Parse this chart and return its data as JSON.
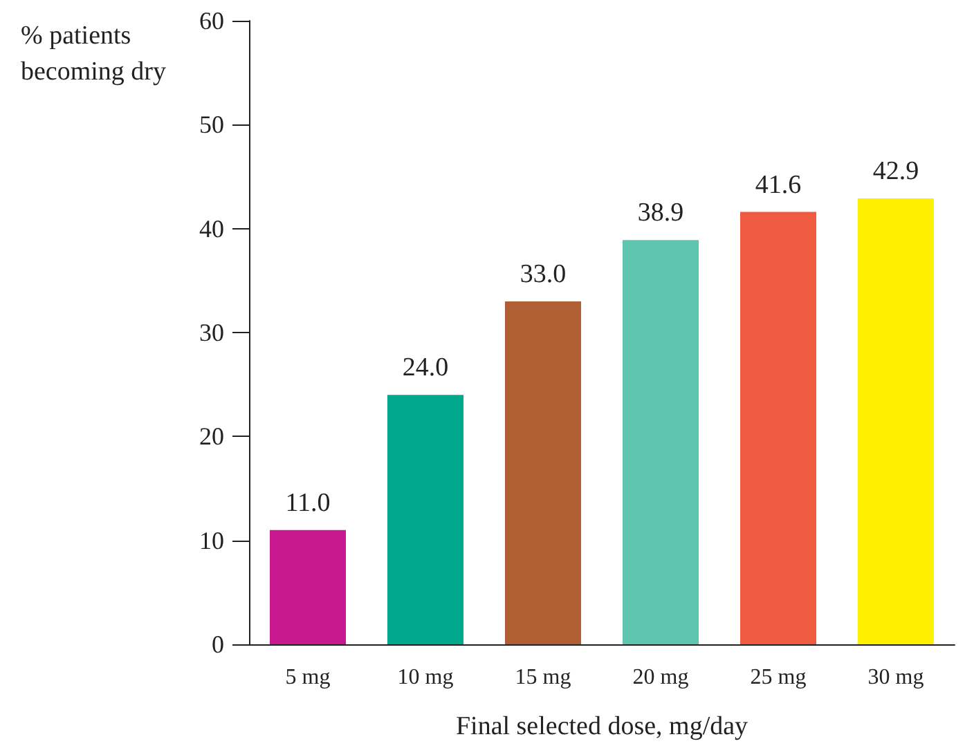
{
  "chart_data": {
    "type": "bar",
    "xlabel": "Final selected dose, mg/day",
    "ylabel": "% patients becoming dry",
    "categories": [
      "5 mg",
      "10 mg",
      "15 mg",
      "20 mg",
      "25 mg",
      "30 mg"
    ],
    "values": [
      11.0,
      24.0,
      33.0,
      38.9,
      41.6,
      42.9
    ],
    "colors": [
      "#c8188f",
      "#00a98b",
      "#b05e33",
      "#5fc5ae",
      "#ef5b40",
      "#fff000"
    ],
    "value_labels": [
      "11.0",
      "24.0",
      "33.0",
      "38.9",
      "41.6",
      "42.9"
    ],
    "ylim": [
      0,
      60
    ],
    "yticks": [
      0,
      10,
      20,
      30,
      40,
      50,
      60
    ],
    "grid": false
  }
}
